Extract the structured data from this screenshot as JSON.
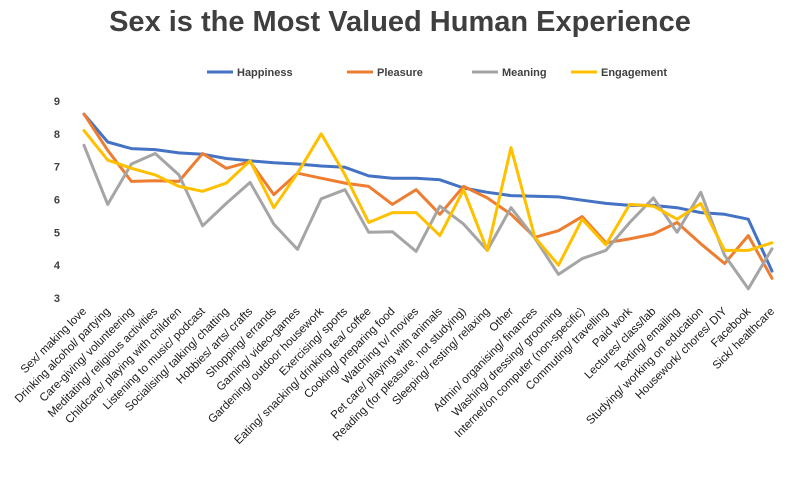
{
  "chart_data": {
    "type": "line",
    "title": "Sex is the Most Valued Human Experience",
    "xlabel": "",
    "ylabel": "",
    "ylim": [
      3,
      9
    ],
    "yticks": [
      3,
      4,
      5,
      6,
      7,
      8,
      9
    ],
    "grid": false,
    "legend_position": "top",
    "categories": [
      "Sex/ making love",
      "Drinking alcohol/ partying",
      "Care-giving/ volunteering",
      "Meditating/ religious activities",
      "Childcare/ playing with children",
      "Listening to music/ podcast",
      "Socialising/ talking/ chatting",
      "Hobbies/ arts/ crafts",
      "Shopping/ errands",
      "Gaming/ video-games",
      "Gardening/ outdoor housework",
      "Exercising/ sports",
      "Eating/ snacking/ drinking tea/ coffee",
      "Cooking/ preparing food",
      "Watching tv/ movies",
      "Pet care/ playing with animals",
      "Reading (for pleasure, not studying)",
      "Sleeping/ resting/ relaxing",
      "Other",
      "Admin/ organising/ finances",
      "Washing/ dressing/ grooming",
      "Internet/on computer (non-specific)",
      "Commuting/ travelling",
      "Paid work",
      "Lectures/ class/lab",
      "Texting/ emailing",
      "Studying/ working on education",
      "Housework/ chores/ DIY",
      "Facebook",
      "Sick/ healthcare"
    ],
    "series": [
      {
        "name": "Happiness",
        "color": "#4472c4",
        "values": [
          8.6,
          7.75,
          7.55,
          7.52,
          7.42,
          7.38,
          7.25,
          7.18,
          7.12,
          7.08,
          7.02,
          6.98,
          6.72,
          6.65,
          6.65,
          6.6,
          6.35,
          6.22,
          6.12,
          6.1,
          6.08,
          5.98,
          5.88,
          5.82,
          5.82,
          5.75,
          5.6,
          5.55,
          5.4,
          3.82
        ]
      },
      {
        "name": "Pleasure",
        "color": "#ed7d31",
        "values": [
          8.6,
          7.5,
          6.55,
          6.57,
          6.55,
          7.4,
          6.95,
          7.15,
          6.15,
          6.8,
          6.65,
          6.5,
          6.4,
          5.85,
          6.3,
          5.55,
          6.4,
          6.05,
          5.55,
          4.85,
          5.05,
          5.48,
          4.68,
          4.8,
          4.95,
          5.3,
          4.65,
          4.05,
          4.9,
          3.6
        ]
      },
      {
        "name": "Meaning",
        "color": "#a5a5a5",
        "values": [
          7.65,
          5.85,
          7.08,
          7.4,
          6.75,
          5.2,
          5.88,
          6.52,
          5.25,
          4.48,
          6.02,
          6.3,
          5.0,
          5.02,
          4.42,
          5.8,
          5.25,
          4.45,
          5.75,
          4.82,
          3.72,
          4.2,
          4.45,
          5.3,
          6.05,
          5.0,
          6.22,
          4.3,
          3.28,
          4.5
        ]
      },
      {
        "name": "Engagement",
        "color": "#ffc000",
        "values": [
          8.1,
          7.2,
          6.95,
          6.75,
          6.4,
          6.25,
          6.5,
          7.18,
          5.75,
          6.8,
          8.0,
          6.75,
          5.3,
          5.6,
          5.6,
          4.9,
          6.3,
          4.45,
          7.58,
          4.85,
          4.0,
          5.4,
          4.62,
          5.85,
          5.8,
          5.4,
          5.88,
          4.45,
          4.45,
          4.68
        ]
      }
    ]
  }
}
